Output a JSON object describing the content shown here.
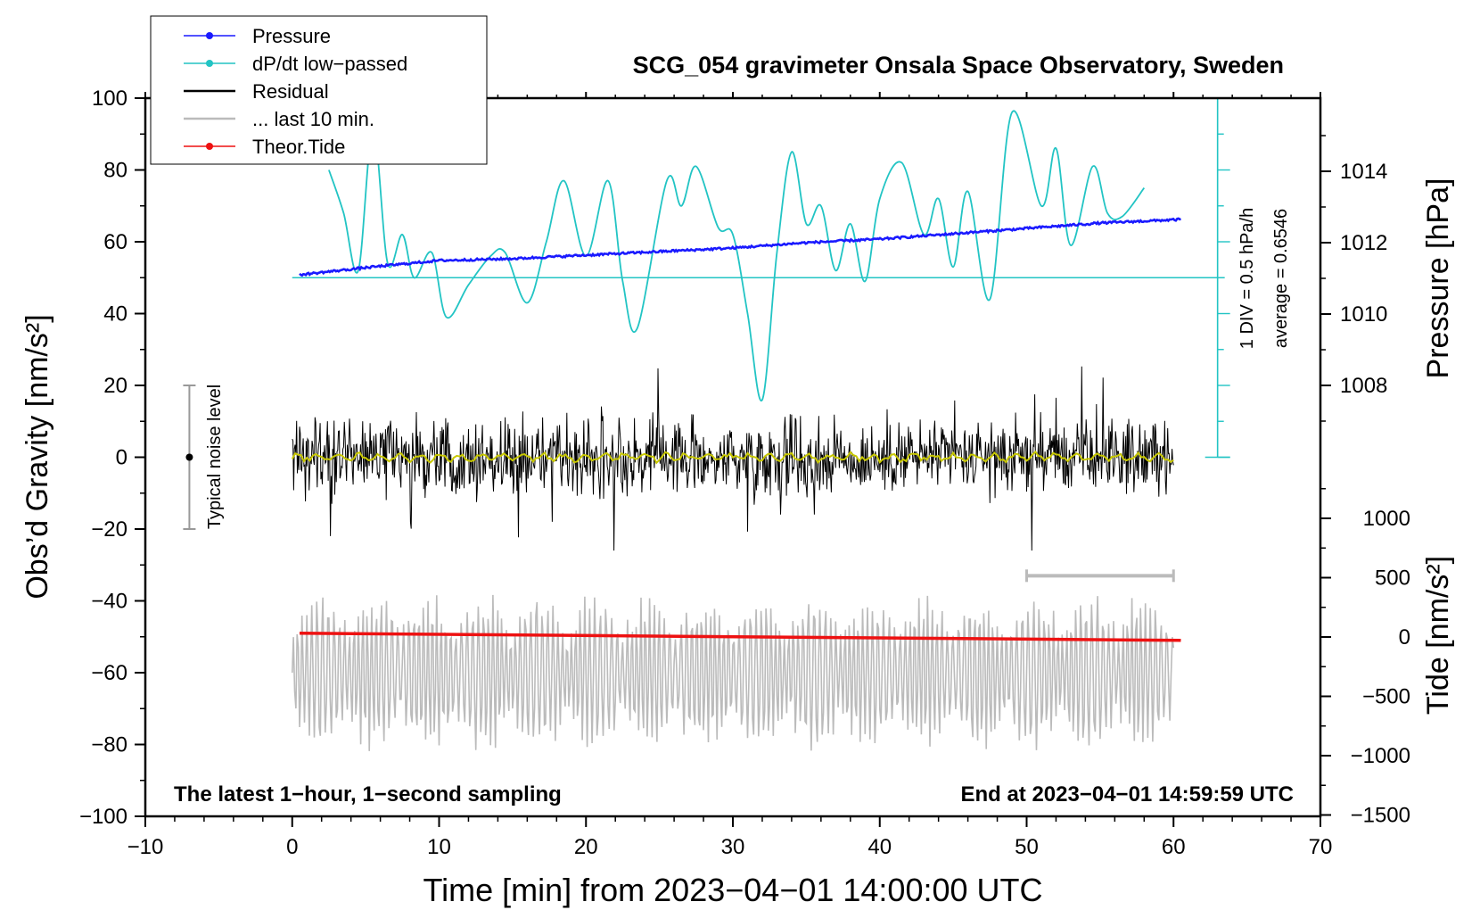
{
  "chart_data": {
    "type": "line",
    "title": "SCG_054 gravimeter Onsala Space Observatory, Sweden",
    "xlabel": "Time [min] from 2023−04−01 14:00:00 UTC",
    "ylabel_left": "Obs’d Gravity [nm/s²]",
    "ylabel_pressure": "Pressure [hPa]",
    "ylabel_tide": "Tide [nm/s²]",
    "xlim": [
      -10,
      70
    ],
    "ylim_left": [
      -100,
      100
    ],
    "x_ticks": [
      "−10",
      "0",
      "10",
      "20",
      "30",
      "40",
      "50",
      "60",
      "70"
    ],
    "y_ticks_left": [
      "100",
      "80",
      "60",
      "40",
      "20",
      "0",
      "−20",
      "−40",
      "−60",
      "−80",
      "−100"
    ],
    "pressure_ticks": [
      "1014",
      "1012",
      "1010",
      "1008"
    ],
    "tide_ticks": [
      "1000",
      "500",
      "0",
      "−500",
      "−1000",
      "−1500"
    ],
    "legend": {
      "position": "top-left",
      "entries": [
        {
          "label": "Pressure",
          "color": "#1a1aff",
          "marker": true
        },
        {
          "label": "dP/dt low−passed",
          "color": "#22c4c4",
          "marker": true
        },
        {
          "label": "Residual",
          "color": "#000000",
          "marker": false
        },
        {
          "label": "... last 10 min.",
          "color": "#bbbbbb",
          "marker": false
        },
        {
          "label": "Theor.Tide",
          "color": "#ee1111",
          "marker": true
        }
      ]
    },
    "annotations": {
      "bottom_left": "The latest 1−hour, 1−second sampling",
      "bottom_right": "End at 2023−04−01 14:59:59 UTC",
      "noise_label": "Typical noise level",
      "dpdt_scale": "1 DIV = 0.5 hPa/h",
      "dpdt_average": "average = 0.6546"
    },
    "series": {
      "pressure_hpa": {
        "x": [
          0.5,
          5,
          10,
          15,
          20,
          25,
          30,
          35,
          40,
          45,
          50,
          55,
          60.5
        ],
        "y": [
          1011.1,
          1011.3,
          1011.5,
          1011.55,
          1011.65,
          1011.75,
          1011.85,
          1012.0,
          1012.1,
          1012.25,
          1012.4,
          1012.55,
          1012.65
        ]
      },
      "dpdt_lowpassed_y": {
        "x": [
          2.5,
          3.5,
          4.5,
          5.5,
          6.5,
          7.5,
          8.3,
          9.5,
          10.5,
          12,
          13.5,
          14.5,
          16,
          17.3,
          18.5,
          20,
          21.5,
          22.5,
          23.5,
          25.5,
          26.5,
          27.5,
          29,
          30,
          31,
          32,
          33,
          34,
          35,
          36,
          37,
          38,
          39,
          40,
          41.5,
          43,
          44,
          45,
          46,
          47.5,
          49,
          51,
          52,
          53,
          54.5,
          55.5,
          56.5,
          58
        ],
        "y": [
          80,
          68,
          52,
          92,
          54,
          62,
          50,
          57,
          39,
          48,
          56,
          57,
          43,
          60,
          77,
          56,
          77,
          49,
          36,
          77,
          70,
          81,
          64,
          62,
          40,
          16,
          57,
          85,
          65,
          70,
          52,
          65,
          49,
          72,
          82,
          62,
          72,
          53,
          74,
          44,
          96,
          70,
          86,
          59,
          81,
          68,
          67,
          75
        ]
      },
      "residual": {
        "x_start": 0,
        "x_end": 60,
        "typical_range": [
          -20,
          20
        ],
        "peak_range": [
          -26,
          27
        ]
      },
      "residual_smoothed": {
        "x_start": 0,
        "x_end": 60,
        "level": 0
      },
      "last_10_min": {
        "x_start": 50,
        "x_end": 60,
        "y_left": -33
      },
      "tide_overlay": {
        "x_start": 0,
        "x_end": 60,
        "y_left_center": -60,
        "amplitude": 20
      },
      "theor_tide": {
        "x": [
          0.5,
          60.5
        ],
        "y": [
          -49,
          -51
        ]
      },
      "noise_bar": {
        "x": -7,
        "y": 0,
        "half_range": 20
      },
      "dpdt_baseline_y": 50,
      "dpdt_axis": {
        "x": 63,
        "y_top": 100,
        "y_bottom": 0
      }
    }
  }
}
